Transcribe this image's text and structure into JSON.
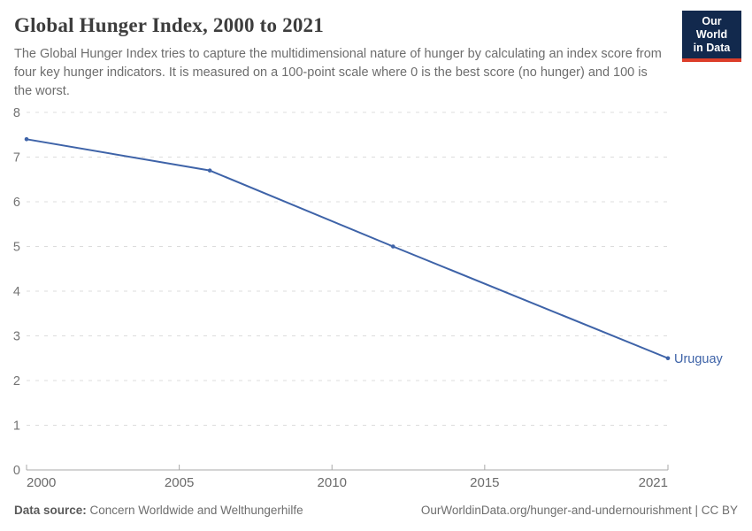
{
  "header": {
    "title": "Global Hunger Index, 2000 to 2021",
    "subtitle": "The Global Hunger Index tries to capture the multidimensional nature of hunger by calculating an index score from four key hunger indicators. It is measured on a 100-point scale where 0 is the best score (no hunger) and 100 is the worst.",
    "logo": {
      "line1": "Our World",
      "line2": "in Data"
    }
  },
  "chart_data": {
    "type": "line",
    "title": "Global Hunger Index, 2000 to 2021",
    "xlabel": "",
    "ylabel": "",
    "xlim": [
      2000,
      2021
    ],
    "ylim": [
      0,
      8
    ],
    "x_ticks": [
      2000,
      2005,
      2010,
      2015,
      2021
    ],
    "y_ticks": [
      0,
      1,
      2,
      3,
      4,
      5,
      6,
      7,
      8
    ],
    "grid": "horizontal-dashed",
    "legend_position": "end-of-line-label",
    "series": [
      {
        "name": "Uruguay",
        "color": "#3e63a8",
        "x": [
          2000,
          2006,
          2012,
          2021
        ],
        "values": [
          7.4,
          6.7,
          5.0,
          2.5
        ]
      }
    ]
  },
  "footer": {
    "source_label": "Data source:",
    "source_text": " Concern Worldwide and Welthungerhilfe",
    "note": "OurWorldinData.org/hunger-and-undernourishment | CC BY"
  },
  "colors": {
    "line": "#3e63a8",
    "gridline": "#dcdcdc",
    "axis": "#a8a8a8",
    "y_tick_label": "#737373",
    "x_tick_label": "#6b6b6b",
    "title": "#3d3d3d",
    "subtitle": "#6d6d6d",
    "logo_bg": "#12294d",
    "logo_red": "#dc3e2a"
  }
}
